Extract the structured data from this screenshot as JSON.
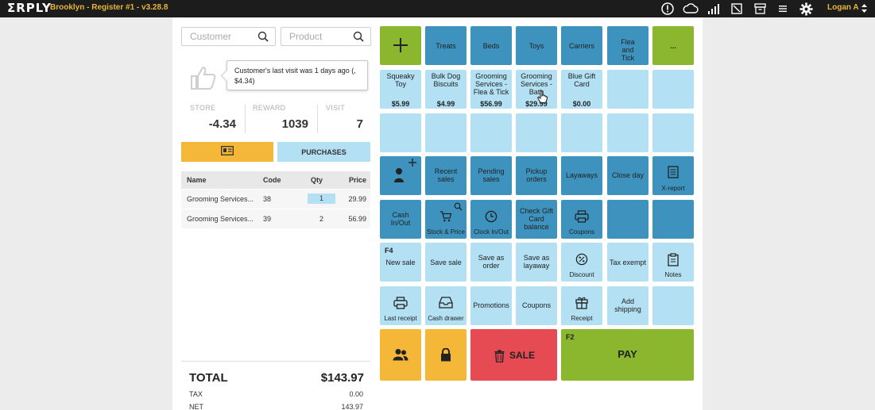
{
  "app": {
    "logo": "ΣRPLY",
    "title": "Brooklyn - Register #1 - v3.28.8",
    "user": "Logan A"
  },
  "topbar_icons": [
    "alert-icon",
    "cloud-icon",
    "signal-icon",
    "resize-icon",
    "archive-icon",
    "menu-icon",
    "gear-icon"
  ],
  "search": {
    "customer_placeholder": "Customer",
    "product_placeholder": "Product"
  },
  "tooltip": {
    "text": "Customer's last visit was 1 days ago (, $4.34)"
  },
  "stats": {
    "store_label": "STORE",
    "store_value": "-4.34",
    "reward_label": "REWARD",
    "reward_value": "1039",
    "visit_label": "VISIT",
    "visit_value": "7"
  },
  "buttons": {
    "purchases": "PURCHASES"
  },
  "table": {
    "headers": {
      "name": "Name",
      "code": "Code",
      "qty": "Qty",
      "price": "Price"
    },
    "rows": [
      {
        "name": "Grooming Services...",
        "code": "38",
        "qty": "1",
        "price": "29.99"
      },
      {
        "name": "Grooming Services...",
        "code": "39",
        "qty": "2",
        "price": "56.99"
      }
    ]
  },
  "totals": {
    "total_label": "TOTAL",
    "total_value": "$143.97",
    "tax_label": "TAX",
    "tax_value": "0.00",
    "net_label": "NET",
    "net_value": "143.97"
  },
  "grid": {
    "categories": {
      "treats": "Treats",
      "beds": "Beds",
      "toys": "Toys",
      "carriers": "Carriers",
      "flea": "Flea and Tick",
      "more": "..."
    },
    "products": [
      {
        "name": "Squeaky Toy",
        "price": "$5.99"
      },
      {
        "name": "Bulk Dog Biscuits",
        "price": "$4.99"
      },
      {
        "name": "Grooming Services - Flea & Tick",
        "price": "$56.99"
      },
      {
        "name": "Grooming Services - Bath",
        "price": "$29.99"
      },
      {
        "name": "Blue Gift Card",
        "price": "$0.00"
      }
    ],
    "actions": {
      "recent_sales": "Recent sales",
      "pending_sales": "Pending sales",
      "pickup_orders": "Pickup orders",
      "layaways": "Layaways",
      "close_day": "Close day",
      "x_report": "X-report",
      "cash_in_out": "Cash In/Out",
      "stock_price": "Stock & Price",
      "clock_in_out": "Clock In/Out",
      "check_gift_card": "Check Gift Card balance",
      "coupons_icon": "Coupons",
      "new_sale_key": "F4",
      "new_sale": "New sale",
      "save_sale": "Save sale",
      "save_order": "Save as order",
      "save_layaway": "Save as layaway",
      "discount": "Discount",
      "tax_exempt": "Tax exempt",
      "notes": "Notes",
      "last_receipt": "Last receipt",
      "cash_drawer": "Cash drawer",
      "promotions": "Promotions",
      "coupons": "Coupons",
      "receipt": "Receipt",
      "add_shipping": "Add shipping",
      "sale": "SALE",
      "pay_key": "F2",
      "pay": "PAY"
    }
  },
  "colors": {
    "light_tile": "#b3e1f3",
    "dark_tile": "#3d93bd",
    "green": "#8ab72e",
    "yellow": "#f5b738",
    "red": "#e64a52",
    "topbar": "#1c1c1c",
    "brand_accent": "#e8b636"
  }
}
